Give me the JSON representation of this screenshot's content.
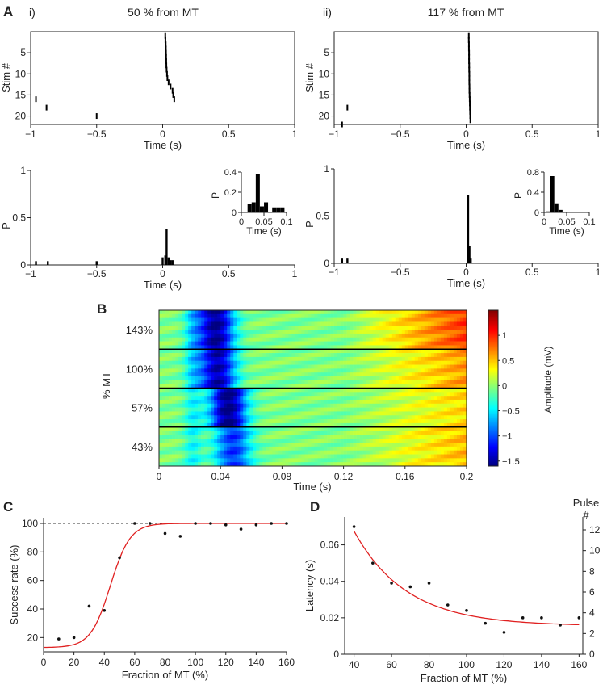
{
  "panelA": {
    "label": "A",
    "left": {
      "tag": "i)",
      "title": "50 % from MT",
      "raster": {
        "ylabel": "Stim #",
        "xlabel": "Time (s)",
        "xlim": [
          -1,
          1
        ],
        "ylim": [
          22,
          0
        ],
        "xticks": [
          "−1",
          "−0.5",
          "0",
          "0.5",
          "1"
        ],
        "yticks": [
          5,
          10,
          15,
          20
        ],
        "events": [
          [
            0.02,
            1
          ],
          [
            0.021,
            2
          ],
          [
            0.023,
            3
          ],
          [
            0.024,
            4
          ],
          [
            0.025,
            5
          ],
          [
            0.026,
            6
          ],
          [
            0.027,
            7
          ],
          [
            0.028,
            8
          ],
          [
            0.03,
            9
          ],
          [
            0.033,
            10
          ],
          [
            0.036,
            11
          ],
          [
            0.045,
            12
          ],
          [
            0.06,
            13
          ],
          [
            0.075,
            14
          ],
          [
            0.08,
            15
          ],
          [
            0.088,
            16
          ],
          [
            -0.96,
            16
          ],
          [
            -0.88,
            18
          ],
          [
            -0.5,
            20
          ]
        ]
      },
      "hist": {
        "ylabel": "P",
        "xlabel": "Time (s)",
        "xlim": [
          -1,
          1
        ],
        "ylim": [
          0,
          1
        ],
        "xticks": [
          "−1",
          "−0.5",
          "0",
          "0.5",
          "1"
        ],
        "yticks": [
          "0",
          "0.5",
          "1"
        ],
        "bars": [
          [
            -0.96,
            0.04
          ],
          [
            -0.87,
            0.04
          ],
          [
            -0.5,
            0.04
          ],
          [
            0.0,
            0.08
          ],
          [
            0.02,
            0.1
          ],
          [
            0.03,
            0.38
          ],
          [
            0.045,
            0.08
          ],
          [
            0.06,
            0.05
          ],
          [
            0.075,
            0.05
          ]
        ],
        "inset": {
          "ylabel": "P",
          "xlabel": "Time (s)",
          "xlim": [
            0,
            0.11
          ],
          "ylim": [
            0,
            0.4
          ],
          "xticks": [
            "0",
            "0.05",
            "0.1"
          ],
          "yticks": [
            "0",
            "0.2",
            "0.4"
          ],
          "bars": [
            [
              0.02,
              0.08
            ],
            [
              0.03,
              0.1
            ],
            [
              0.04,
              0.38
            ],
            [
              0.05,
              0.06
            ],
            [
              0.06,
              0.1
            ],
            [
              0.08,
              0.05
            ],
            [
              0.09,
              0.05
            ],
            [
              0.1,
              0.05
            ]
          ]
        }
      }
    },
    "right": {
      "tag": "ii)",
      "title": "117 % from MT",
      "raster": {
        "ylabel": "Stim #",
        "xlabel": "Time (s)",
        "xlim": [
          -1,
          1
        ],
        "ylim": [
          22,
          0
        ],
        "xticks": [
          "−1",
          "−0.5",
          "0",
          "0.5",
          "1"
        ],
        "yticks": [
          5,
          10,
          15,
          20
        ],
        "events": [
          [
            0.02,
            1
          ],
          [
            0.02,
            2
          ],
          [
            0.021,
            3
          ],
          [
            0.021,
            4
          ],
          [
            0.022,
            5
          ],
          [
            0.022,
            6
          ],
          [
            0.022,
            7
          ],
          [
            0.023,
            8
          ],
          [
            0.023,
            9
          ],
          [
            0.024,
            10
          ],
          [
            0.024,
            11
          ],
          [
            0.024,
            12
          ],
          [
            0.025,
            13
          ],
          [
            0.025,
            14
          ],
          [
            0.026,
            15
          ],
          [
            0.027,
            16
          ],
          [
            0.028,
            17
          ],
          [
            0.029,
            18
          ],
          [
            0.03,
            19
          ],
          [
            0.031,
            20
          ],
          [
            0.032,
            21
          ],
          [
            -0.9,
            18
          ],
          [
            -0.94,
            22
          ]
        ]
      },
      "hist": {
        "ylabel": "P",
        "xlabel": "Time (s)",
        "xlim": [
          -1,
          1
        ],
        "ylim": [
          0,
          1
        ],
        "xticks": [
          "−1",
          "−0.5",
          "0",
          "0.5",
          "1"
        ],
        "yticks": [
          "0",
          "0.5",
          "1"
        ],
        "bars": [
          [
            -0.94,
            0.05
          ],
          [
            -0.9,
            0.05
          ],
          [
            0.015,
            0.72
          ],
          [
            0.025,
            0.18
          ],
          [
            0.035,
            0.05
          ]
        ],
        "inset": {
          "ylabel": "P",
          "xlabel": "Time (s)",
          "xlim": [
            0,
            0.11
          ],
          "ylim": [
            0,
            0.8
          ],
          "xticks": [
            "0",
            "0.05",
            "0.1"
          ],
          "yticks": [
            "0",
            "0.4",
            "0.8"
          ],
          "bars": [
            [
              0.01,
              0.02
            ],
            [
              0.02,
              0.72
            ],
            [
              0.03,
              0.18
            ],
            [
              0.04,
              0.05
            ]
          ]
        }
      }
    }
  },
  "panelB": {
    "label": "B",
    "ylabel": "% MT",
    "xlabel": "Time (s)",
    "xlim": [
      0,
      0.2
    ],
    "xticks": [
      "0",
      "0.04",
      "0.08",
      "0.12",
      "0.16",
      "0.2"
    ],
    "rowGroups": [
      "143%",
      "100%",
      "57%",
      "43%"
    ],
    "colorbar": {
      "label": "Amplitude (mV)",
      "range": [
        -1.6,
        1.5
      ],
      "ticks": [
        "1",
        "0.5",
        "0",
        "−0.5",
        "−1",
        "−1.5"
      ]
    }
  },
  "chart_data": [
    {
      "panel": "C",
      "type": "scatter",
      "xlabel": "Fraction of MT (%)",
      "ylabel": "Success rate (%)",
      "xlim": [
        0,
        160
      ],
      "ylim": [
        10,
        100
      ],
      "xticks": [
        0,
        20,
        40,
        60,
        80,
        100,
        120,
        140,
        160
      ],
      "yticks": [
        20,
        40,
        60,
        80,
        100
      ],
      "points": {
        "x": [
          10,
          20,
          30,
          40,
          50,
          60,
          70,
          80,
          90,
          100,
          110,
          120,
          130,
          140,
          150,
          160
        ],
        "y": [
          19,
          20,
          42,
          39,
          76,
          100,
          100,
          93,
          91,
          100,
          100,
          99,
          96,
          99,
          100,
          100
        ]
      },
      "fit": "sigmoid",
      "reference_lines": [
        100,
        12
      ],
      "colors": {
        "fit": "#e02020",
        "points": "#111111"
      }
    },
    {
      "panel": "D",
      "type": "scatter",
      "xlabel": "Fraction of MT (%)",
      "ylabel": "Latency (s)",
      "y2label": "Pulse #",
      "xlim": [
        35,
        162
      ],
      "ylim": [
        0,
        0.07
      ],
      "xticks": [
        40,
        60,
        80,
        100,
        120,
        140,
        160
      ],
      "yticks": [
        0,
        0.02,
        0.04,
        0.06
      ],
      "y2ticks": [
        0,
        2,
        4,
        6,
        8,
        10,
        12
      ],
      "points": {
        "x": [
          40,
          50,
          60,
          70,
          80,
          90,
          100,
          110,
          120,
          130,
          140,
          150,
          160
        ],
        "y": [
          0.07,
          0.05,
          0.039,
          0.037,
          0.039,
          0.027,
          0.024,
          0.017,
          0.012,
          0.02,
          0.02,
          0.016,
          0.02
        ]
      },
      "fit": "exponential decay",
      "colors": {
        "fit": "#e02020",
        "points": "#111111"
      }
    }
  ],
  "labels": {
    "C": "C",
    "D": "D"
  }
}
